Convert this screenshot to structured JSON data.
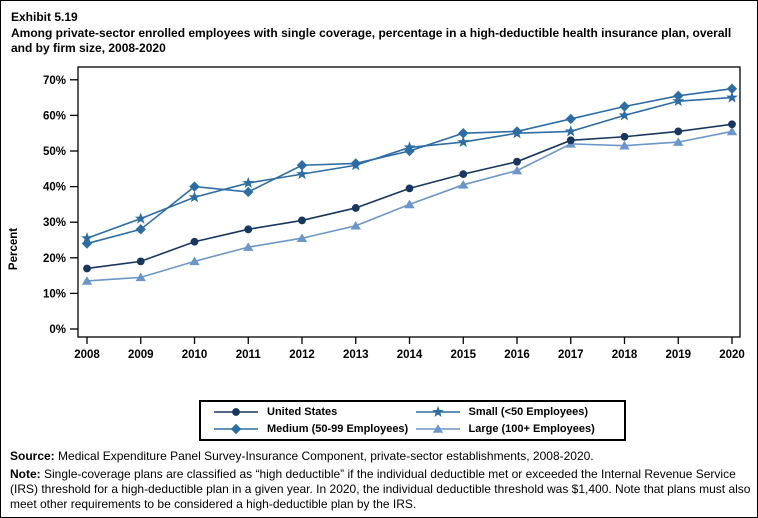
{
  "title": {
    "exhibit": "Exhibit 5.19",
    "text": "Among private-sector enrolled employees with single coverage, percentage in a high-deductible health insurance plan, overall and by firm size, 2008-2020"
  },
  "chart_data": {
    "type": "line",
    "x": [
      2008,
      2009,
      2010,
      2011,
      2012,
      2013,
      2014,
      2015,
      2016,
      2017,
      2018,
      2019,
      2020
    ],
    "ylabel": "Percent",
    "ylim": [
      0,
      70
    ],
    "ytick_step": 10,
    "ytick_suffix": "%",
    "grid": false,
    "legend_position": "bottom-boxed",
    "series": [
      {
        "name": "United States",
        "marker": "circle",
        "color": "#17375E",
        "values": [
          17,
          19,
          24.5,
          28,
          30.5,
          34,
          39.5,
          43.5,
          47,
          53,
          54,
          55.5,
          57.5
        ]
      },
      {
        "name": "Small (<50 Employees)",
        "marker": "star",
        "color": "#2E6DA4",
        "values": [
          25.5,
          31,
          37,
          41,
          43.5,
          46,
          51,
          52.5,
          55,
          55.5,
          60,
          64,
          65
        ]
      },
      {
        "name": "Medium (50-99 Employees)",
        "marker": "diamond",
        "color": "#2E6DA4",
        "values": [
          24,
          28,
          40,
          38.5,
          46,
          46.5,
          50,
          55,
          55.5,
          59,
          62.5,
          65.5,
          67.5
        ]
      },
      {
        "name": "Large (100+ Employees)",
        "marker": "triangle",
        "color": "#6C96C9",
        "values": [
          13.5,
          14.5,
          19,
          23,
          25.5,
          29,
          35,
          40.5,
          44.5,
          52,
          51.5,
          52.5,
          55.5
        ]
      }
    ],
    "legend_grid_order": [
      "United States",
      "Medium (50-99 Employees)",
      "Small (<50 Employees)",
      "Large (100+ Employees)"
    ]
  },
  "footnotes": {
    "source_label": "Source:",
    "source_text": " Medical Expenditure Panel Survey-Insurance Component, private-sector establishments, 2008-2020.",
    "note_label": "Note:",
    "note_text": " Single-coverage plans are classified as “high deductible” if the individual deductible met or exceeded the Internal Revenue Service (IRS) threshold for a high-deductible plan in a given year. In 2020, the individual deductible threshold was $1,400. Note that plans must also meet other requirements to be considered a high-deductible plan by the IRS."
  }
}
